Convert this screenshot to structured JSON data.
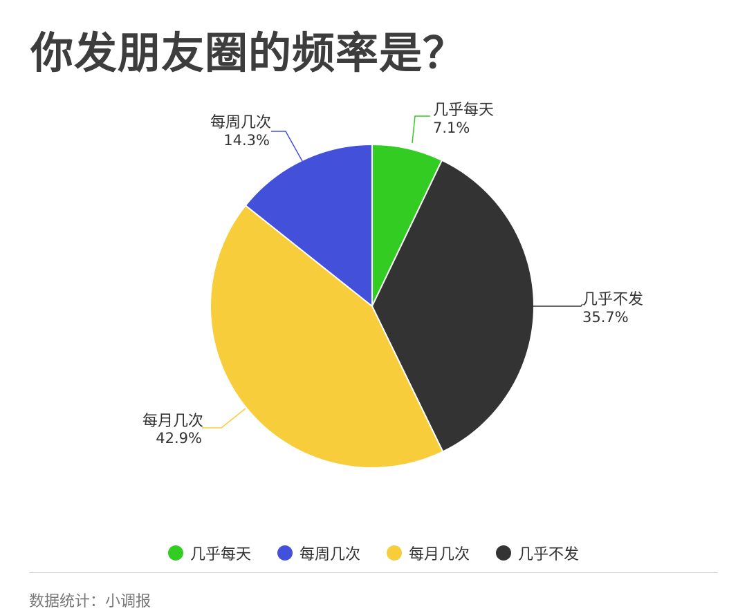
{
  "title": "你发朋友圈的频率是？",
  "chart_data": {
    "type": "pie",
    "title": "你发朋友圈的频率是？",
    "slices": [
      {
        "label": "几乎每天",
        "value": 7.1,
        "value_label": "7.1%",
        "color": "#33cc22"
      },
      {
        "label": "几乎不发",
        "value": 35.7,
        "value_label": "35.7%",
        "color": "#333333"
      },
      {
        "label": "每月几次",
        "value": 42.9,
        "value_label": "42.9%",
        "color": "#f7cd3b"
      },
      {
        "label": "每周几次",
        "value": 14.3,
        "value_label": "14.3%",
        "color": "#4350d9"
      }
    ],
    "legend": {
      "position": "bottom",
      "order": [
        "几乎每天",
        "每周几次",
        "每月几次",
        "几乎不发"
      ]
    }
  },
  "source": "数据统计：小调报"
}
